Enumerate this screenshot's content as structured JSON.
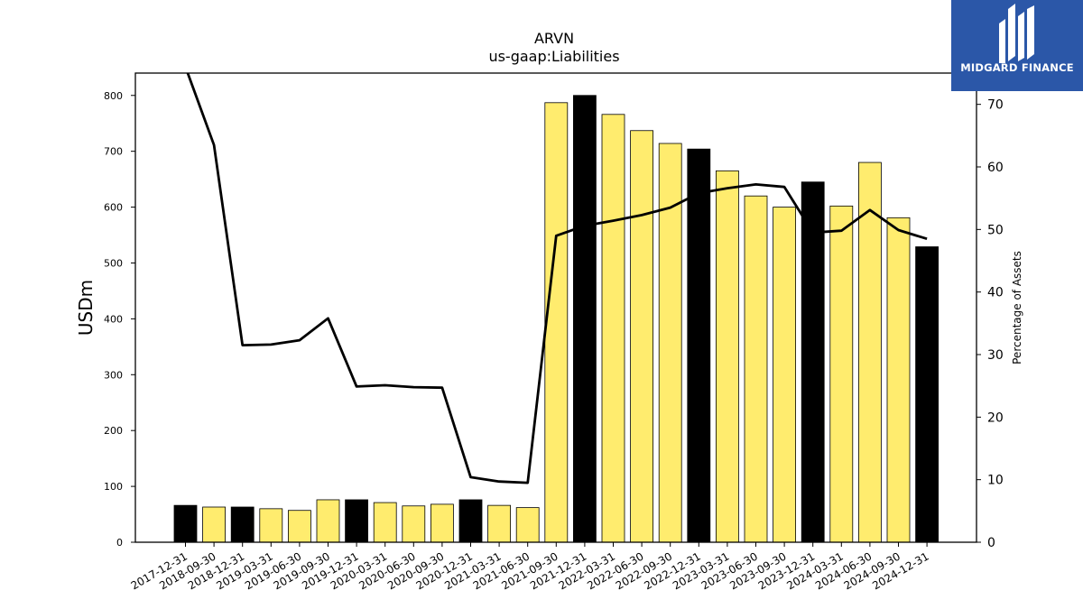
{
  "chart_data": {
    "type": "bar",
    "title": "ARVN",
    "subtitle": "us-gaap:Liabilities",
    "ylabel": "USDm",
    "y2label": "Percentage of Assets",
    "ylim": [
      0,
      840
    ],
    "y2lim": [
      0,
      75
    ],
    "yticks": [
      0,
      100,
      200,
      300,
      400,
      500,
      600,
      700,
      800
    ],
    "y2ticks": [
      0,
      10,
      20,
      30,
      40,
      50,
      60,
      70
    ],
    "categories": [
      "2017-12-31",
      "2018-09-30",
      "2018-12-31",
      "2019-03-31",
      "2019-06-30",
      "2019-09-30",
      "2019-12-31",
      "2020-03-31",
      "2020-06-30",
      "2020-09-30",
      "2020-12-31",
      "2021-03-31",
      "2021-06-30",
      "2021-09-30",
      "2021-12-31",
      "2022-03-31",
      "2022-06-30",
      "2022-09-30",
      "2022-12-31",
      "2023-03-31",
      "2023-06-30",
      "2023-09-30",
      "2023-12-31",
      "2024-03-31",
      "2024-06-30",
      "2024-09-30",
      "2024-12-31"
    ],
    "series": [
      {
        "type": "bar",
        "axis": "left",
        "values": [
          66,
          63,
          63,
          60,
          57,
          76,
          76,
          71,
          65,
          68,
          76,
          66,
          62,
          787,
          800,
          766,
          737,
          714,
          704,
          665,
          620,
          600,
          645,
          602,
          680,
          581,
          529
        ]
      },
      {
        "type": "line",
        "axis": "right",
        "values": [
          76,
          63.5,
          31.5,
          31.6,
          32.3,
          35.8,
          24.9,
          25.1,
          24.8,
          24.7,
          10.4,
          9.7,
          9.5,
          49.0,
          50.6,
          51.4,
          52.3,
          53.5,
          55.8,
          56.6,
          57.2,
          56.8,
          49.5,
          49.8,
          53.1,
          49.9,
          48.5
        ]
      }
    ],
    "bar_colors": {
      "year_end": "#000000",
      "quarter": "#ffec6e"
    },
    "line_color": "#000000",
    "grid": false,
    "legend": "none"
  },
  "logo": {
    "text": "MIDGARD FINANCE",
    "color": "#2b57a8"
  }
}
